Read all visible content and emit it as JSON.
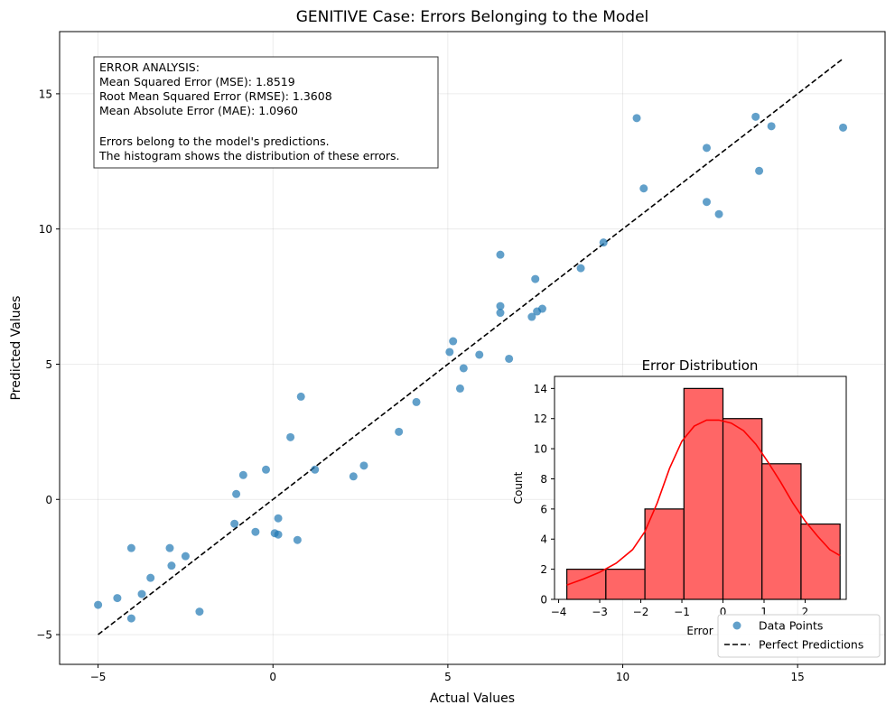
{
  "chart_data": [
    {
      "type": "scatter",
      "title": "GENITIVE Case: Errors Belonging to the Model",
      "xlabel": "Actual Values",
      "ylabel": "Predicted Values",
      "xlim": [
        -6.1,
        17.5
      ],
      "ylim": [
        -6.1,
        17.3
      ],
      "xticks": [
        -5,
        0,
        5,
        10,
        15
      ],
      "yticks": [
        -5,
        0,
        5,
        10,
        15
      ],
      "tick_labels_x": [
        "−5",
        "0",
        "5",
        "10",
        "15"
      ],
      "tick_labels_y": [
        "−5",
        "0",
        "5",
        "10",
        "15"
      ],
      "grid": true,
      "legend_placement": "lower-right",
      "series": [
        {
          "name": "Data Points",
          "color": "#1f77b4",
          "points": [
            [
              -5.0,
              -3.9
            ],
            [
              -4.45,
              -3.65
            ],
            [
              -4.05,
              -4.4
            ],
            [
              -4.05,
              -1.8
            ],
            [
              -3.75,
              -3.5
            ],
            [
              -3.5,
              -2.9
            ],
            [
              -2.95,
              -1.8
            ],
            [
              -2.9,
              -2.45
            ],
            [
              -2.5,
              -2.1
            ],
            [
              -2.1,
              -4.15
            ],
            [
              -1.1,
              -0.9
            ],
            [
              -1.05,
              0.2
            ],
            [
              -0.85,
              0.9
            ],
            [
              -0.5,
              -1.2
            ],
            [
              -0.2,
              1.1
            ],
            [
              0.05,
              -1.25
            ],
            [
              0.15,
              -0.7
            ],
            [
              0.15,
              -1.3
            ],
            [
              0.5,
              2.3
            ],
            [
              0.7,
              -1.5
            ],
            [
              0.8,
              3.8
            ],
            [
              1.2,
              1.1
            ],
            [
              2.3,
              0.85
            ],
            [
              2.6,
              1.25
            ],
            [
              3.6,
              2.5
            ],
            [
              4.1,
              3.6
            ],
            [
              5.05,
              5.45
            ],
            [
              5.15,
              5.85
            ],
            [
              5.35,
              4.1
            ],
            [
              5.45,
              4.85
            ],
            [
              5.9,
              5.35
            ],
            [
              6.5,
              9.05
            ],
            [
              6.5,
              7.15
            ],
            [
              6.5,
              6.9
            ],
            [
              6.75,
              5.2
            ],
            [
              7.4,
              6.75
            ],
            [
              7.5,
              8.15
            ],
            [
              7.55,
              6.95
            ],
            [
              7.7,
              7.05
            ],
            [
              8.8,
              8.55
            ],
            [
              9.45,
              9.5
            ],
            [
              10.4,
              14.1
            ],
            [
              10.6,
              11.5
            ],
            [
              12.4,
              13.0
            ],
            [
              12.4,
              11.0
            ],
            [
              12.75,
              10.55
            ],
            [
              13.8,
              14.15
            ],
            [
              13.9,
              12.15
            ],
            [
              14.25,
              13.8
            ],
            [
              16.3,
              13.75
            ]
          ]
        },
        {
          "name": "Perfect Predictions",
          "style": "dashed",
          "color": "#000000",
          "points": [
            [
              -5.0,
              -5.0
            ],
            [
              16.3,
              16.3
            ]
          ]
        }
      ]
    },
    {
      "type": "bar",
      "subtype": "histogram",
      "title": "Error Distribution",
      "xlabel": "Error",
      "ylabel": "Count",
      "xlim": [
        -4.1,
        3.0
      ],
      "ylim": [
        0,
        14.8
      ],
      "xticks": [
        -4,
        -3,
        -2,
        -1,
        0,
        1,
        2
      ],
      "yticks": [
        0,
        2,
        4,
        6,
        8,
        10,
        12,
        14
      ],
      "tick_labels_x": [
        "−4",
        "−3",
        "−2",
        "−1",
        "0",
        "1",
        "2"
      ],
      "tick_labels_y": [
        "0",
        "2",
        "4",
        "6",
        "8",
        "10",
        "12",
        "14"
      ],
      "bin_edges": [
        -3.8,
        -2.85,
        -1.9,
        -0.95,
        0.0,
        0.95,
        1.9,
        2.85
      ],
      "values": [
        2,
        2,
        6,
        14,
        12,
        9,
        5
      ],
      "bar_color": "#ff6666",
      "kde_color": "#ff0000",
      "kde": [
        [
          -3.8,
          0.95
        ],
        [
          -3.4,
          1.35
        ],
        [
          -3.0,
          1.8
        ],
        [
          -2.6,
          2.4
        ],
        [
          -2.2,
          3.3
        ],
        [
          -1.9,
          4.5
        ],
        [
          -1.6,
          6.4
        ],
        [
          -1.3,
          8.7
        ],
        [
          -1.0,
          10.5
        ],
        [
          -0.7,
          11.5
        ],
        [
          -0.4,
          11.9
        ],
        [
          -0.1,
          11.9
        ],
        [
          0.2,
          11.7
        ],
        [
          0.5,
          11.2
        ],
        [
          0.8,
          10.3
        ],
        [
          1.1,
          9.1
        ],
        [
          1.4,
          7.8
        ],
        [
          1.7,
          6.4
        ],
        [
          2.0,
          5.2
        ],
        [
          2.3,
          4.2
        ],
        [
          2.6,
          3.3
        ],
        [
          2.85,
          2.9
        ]
      ]
    }
  ],
  "annotation": {
    "lines": [
      "ERROR ANALYSIS:",
      "Mean Squared Error (MSE): 1.8519",
      "Root Mean Squared Error (RMSE): 1.3608",
      "Mean Absolute Error (MAE): 1.0960",
      "",
      "Errors belong to the model's predictions.",
      "The histogram shows the distribution of these errors."
    ]
  },
  "legend": {
    "items": [
      {
        "label": "Data Points",
        "marker": "circle",
        "color": "#1f77b4"
      },
      {
        "label": "Perfect Predictions",
        "marker": "dashed-line",
        "color": "#000000"
      }
    ]
  }
}
